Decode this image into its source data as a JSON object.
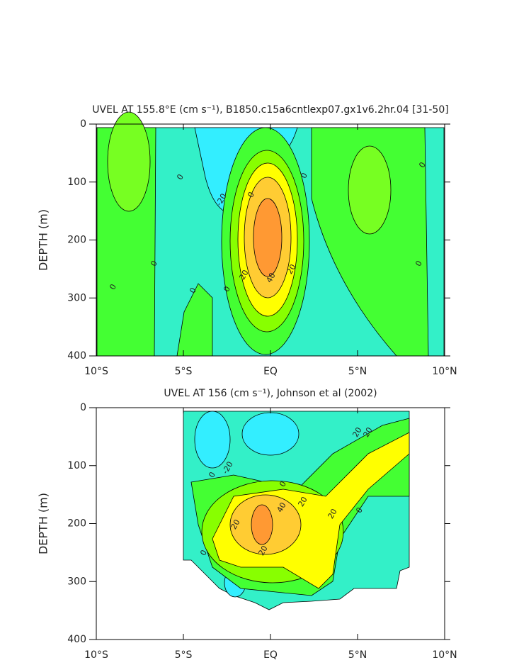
{
  "chart_data": [
    {
      "type": "contour",
      "title": "UVEL AT 155.8°E (cm s⁻¹), B1850.c15a6cntlexp07.gx1v6.2hr.04 [31-50]",
      "ylabel": "DEPTH (m)",
      "xlim": [
        -10,
        10
      ],
      "xticks": [
        {
          "value": -10,
          "label": "10°S"
        },
        {
          "value": -5,
          "label": "5°S"
        },
        {
          "value": 0,
          "label": "EQ"
        },
        {
          "value": 5,
          "label": "5°N"
        },
        {
          "value": 10,
          "label": "10°N"
        }
      ],
      "ylim": [
        400,
        0
      ],
      "yticks": [
        0,
        100,
        200,
        300,
        400
      ],
      "contour_labels": [
        0,
        -20,
        0,
        0,
        0,
        0,
        0,
        0,
        0,
        0,
        20,
        40,
        20
      ]
    },
    {
      "type": "contour",
      "title": "UVEL AT 156 (cm s⁻¹), Johnson et al (2002)",
      "ylabel": "DEPTH (m)",
      "xlim": [
        -10,
        10
      ],
      "xticks": [
        {
          "value": -10,
          "label": "10°S"
        },
        {
          "value": -5,
          "label": "5°S"
        },
        {
          "value": 0,
          "label": "EQ"
        },
        {
          "value": 5,
          "label": "5°N"
        },
        {
          "value": 10,
          "label": "10°N"
        }
      ],
      "ylim": [
        400,
        0
      ],
      "yticks": [
        0,
        100,
        200,
        300,
        400
      ],
      "contour_labels": [
        0,
        -20,
        0,
        20,
        20,
        20,
        20,
        0,
        20,
        40,
        20,
        0
      ]
    }
  ]
}
